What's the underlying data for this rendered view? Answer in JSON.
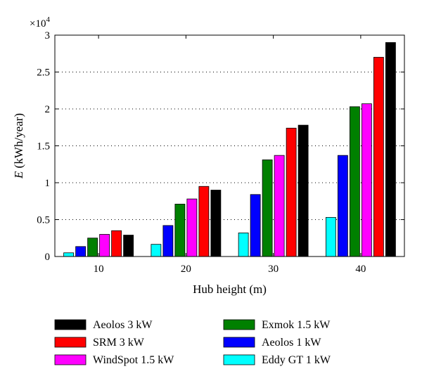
{
  "chart_data": {
    "type": "bar",
    "xlabel": "Hub height (m)",
    "ylabel_var": "E",
    "ylabel_unit": " (kWh/year)",
    "y_scale_base": "×10",
    "y_scale_exp": "4",
    "ylim": [
      0,
      30000
    ],
    "yticks": [
      0,
      5000,
      10000,
      15000,
      20000,
      25000,
      30000
    ],
    "ytick_labels": [
      "0",
      "0.5",
      "1",
      "1.5",
      "2",
      "2.5",
      "3"
    ],
    "categories": [
      "10",
      "20",
      "30",
      "40"
    ],
    "grid": "horizontal-dotted",
    "legend_position": "below",
    "series": [
      {
        "name": "Eddy GT 1 kW",
        "color": "#00ffff",
        "values": [
          500,
          1650,
          3200,
          5300
        ]
      },
      {
        "name": "Aeolos 1 kW",
        "color": "#0000ff",
        "values": [
          1350,
          4200,
          8400,
          13700
        ]
      },
      {
        "name": "Exmok 1.5 kW",
        "color": "#008000",
        "values": [
          2500,
          7100,
          13100,
          20300
        ]
      },
      {
        "name": "WindSpot 1.5 kW",
        "color": "#ff00ff",
        "values": [
          3000,
          7800,
          13700,
          20700
        ]
      },
      {
        "name": "SRM 3 kW",
        "color": "#ff0000",
        "values": [
          3500,
          9500,
          17400,
          27000
        ]
      },
      {
        "name": "Aeolos 3 kW",
        "color": "#000000",
        "values": [
          2900,
          9000,
          17800,
          29000
        ]
      }
    ],
    "legend_order": [
      5,
      2,
      4,
      1,
      3,
      0
    ]
  }
}
